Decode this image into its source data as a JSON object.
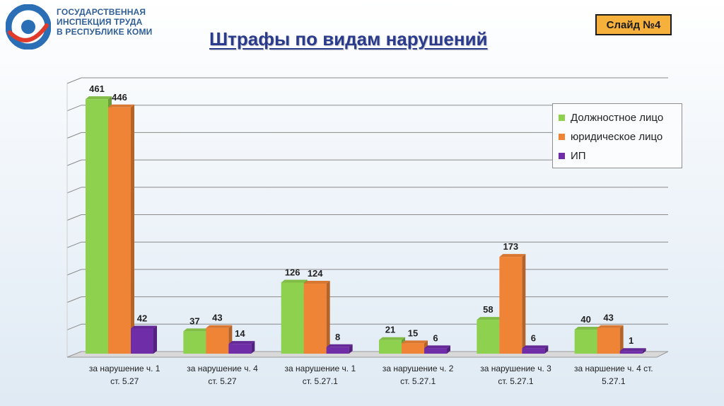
{
  "header": {
    "org_lines": [
      "ГОСУДАРСТВЕННАЯ",
      "ИНСПЕКЦИЯ ТРУДА",
      "В РЕСПУБЛИКЕ КОМИ"
    ],
    "title": "Штрафы по  видам нарушений",
    "slide_label": "Слайд №4"
  },
  "colors": {
    "green": "#8ed14e",
    "orange": "#f08436",
    "purple": "#6f2da8",
    "logo_blue": "#2a6fb5",
    "logo_red": "#e03b2a"
  },
  "chart_data": {
    "type": "bar",
    "categories": [
      [
        "за нарушение  ч. 1",
        "ст. 5.27"
      ],
      [
        "за  нарушение ч. 4",
        "ст. 5.27"
      ],
      [
        "за нарушение ч. 1",
        "ст. 5.27.1"
      ],
      [
        "за нарушение ч. 2",
        "ст. 5.27.1"
      ],
      [
        "за нарушение ч. 3",
        "ст. 5.27.1"
      ],
      [
        "за наршение ч. 4 ст.",
        "5.27.1"
      ]
    ],
    "series": [
      {
        "name": "Должностное лицо",
        "color": "#8ed14e",
        "values": [
          461,
          37,
          126,
          21,
          58,
          40
        ]
      },
      {
        "name": "юридическое лицо",
        "color": "#f08436",
        "values": [
          446,
          43,
          124,
          15,
          173,
          43
        ]
      },
      {
        "name": "ИП",
        "color": "#6f2da8",
        "values": [
          42,
          14,
          8,
          6,
          6,
          1
        ]
      }
    ],
    "ylim": [
      0,
      500
    ],
    "grid": true,
    "legend_position": "top-right"
  }
}
